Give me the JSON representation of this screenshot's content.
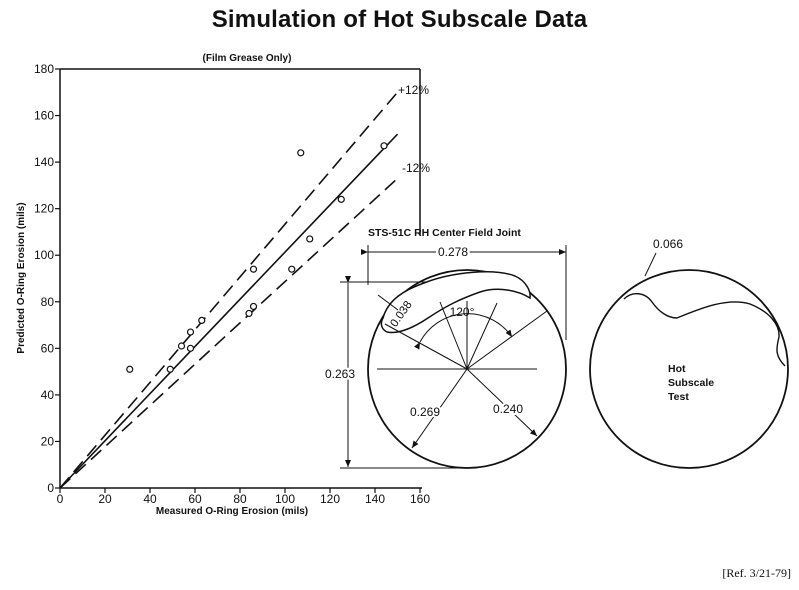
{
  "title": "Simulation of Hot Subscale Data",
  "reference": "[Ref. 3/21-79]",
  "chart_data": {
    "type": "scatter",
    "subtitle": "(Film Grease Only)",
    "xlabel": "Measured O-Ring Erosion (mils)",
    "ylabel": "Predicted O-Ring Erosion (mils)",
    "xlim": [
      0,
      160
    ],
    "ylim": [
      0,
      180
    ],
    "xticks": [
      0,
      20,
      40,
      60,
      80,
      100,
      120,
      140,
      160
    ],
    "yticks": [
      0,
      20,
      40,
      60,
      80,
      100,
      120,
      140,
      160,
      180
    ],
    "grid": false,
    "points": [
      {
        "x": 31,
        "y": 51
      },
      {
        "x": 49,
        "y": 51
      },
      {
        "x": 54,
        "y": 61
      },
      {
        "x": 58,
        "y": 67
      },
      {
        "x": 58,
        "y": 60
      },
      {
        "x": 63,
        "y": 72
      },
      {
        "x": 84,
        "y": 75
      },
      {
        "x": 86,
        "y": 78
      },
      {
        "x": 86,
        "y": 94
      },
      {
        "x": 103,
        "y": 94
      },
      {
        "x": 107,
        "y": 144
      },
      {
        "x": 111,
        "y": 107
      },
      {
        "x": 125,
        "y": 124
      },
      {
        "x": 144,
        "y": 147
      }
    ],
    "reference_lines": [
      {
        "label": "",
        "style": "solid",
        "from": [
          0,
          0
        ],
        "to": [
          150,
          152
        ]
      },
      {
        "label": "+12%",
        "style": "dashed",
        "from": [
          0,
          0
        ],
        "to": [
          150,
          170
        ]
      },
      {
        "label": "-12%",
        "style": "dashed",
        "from": [
          0,
          0
        ],
        "to": [
          150,
          133
        ]
      }
    ]
  },
  "diagram_left": {
    "title": "STS-51C RH Center Field Joint",
    "width_label": "0.278",
    "height_label": "0.263",
    "erosion_label": "0.038",
    "angle_label": "120°",
    "radius_left_label": "0.269",
    "radius_right_label": "0.240"
  },
  "diagram_right": {
    "depth_label": "0.066",
    "caption_line1": "Hot",
    "caption_line2": "Subscale",
    "caption_line3": "Test"
  }
}
